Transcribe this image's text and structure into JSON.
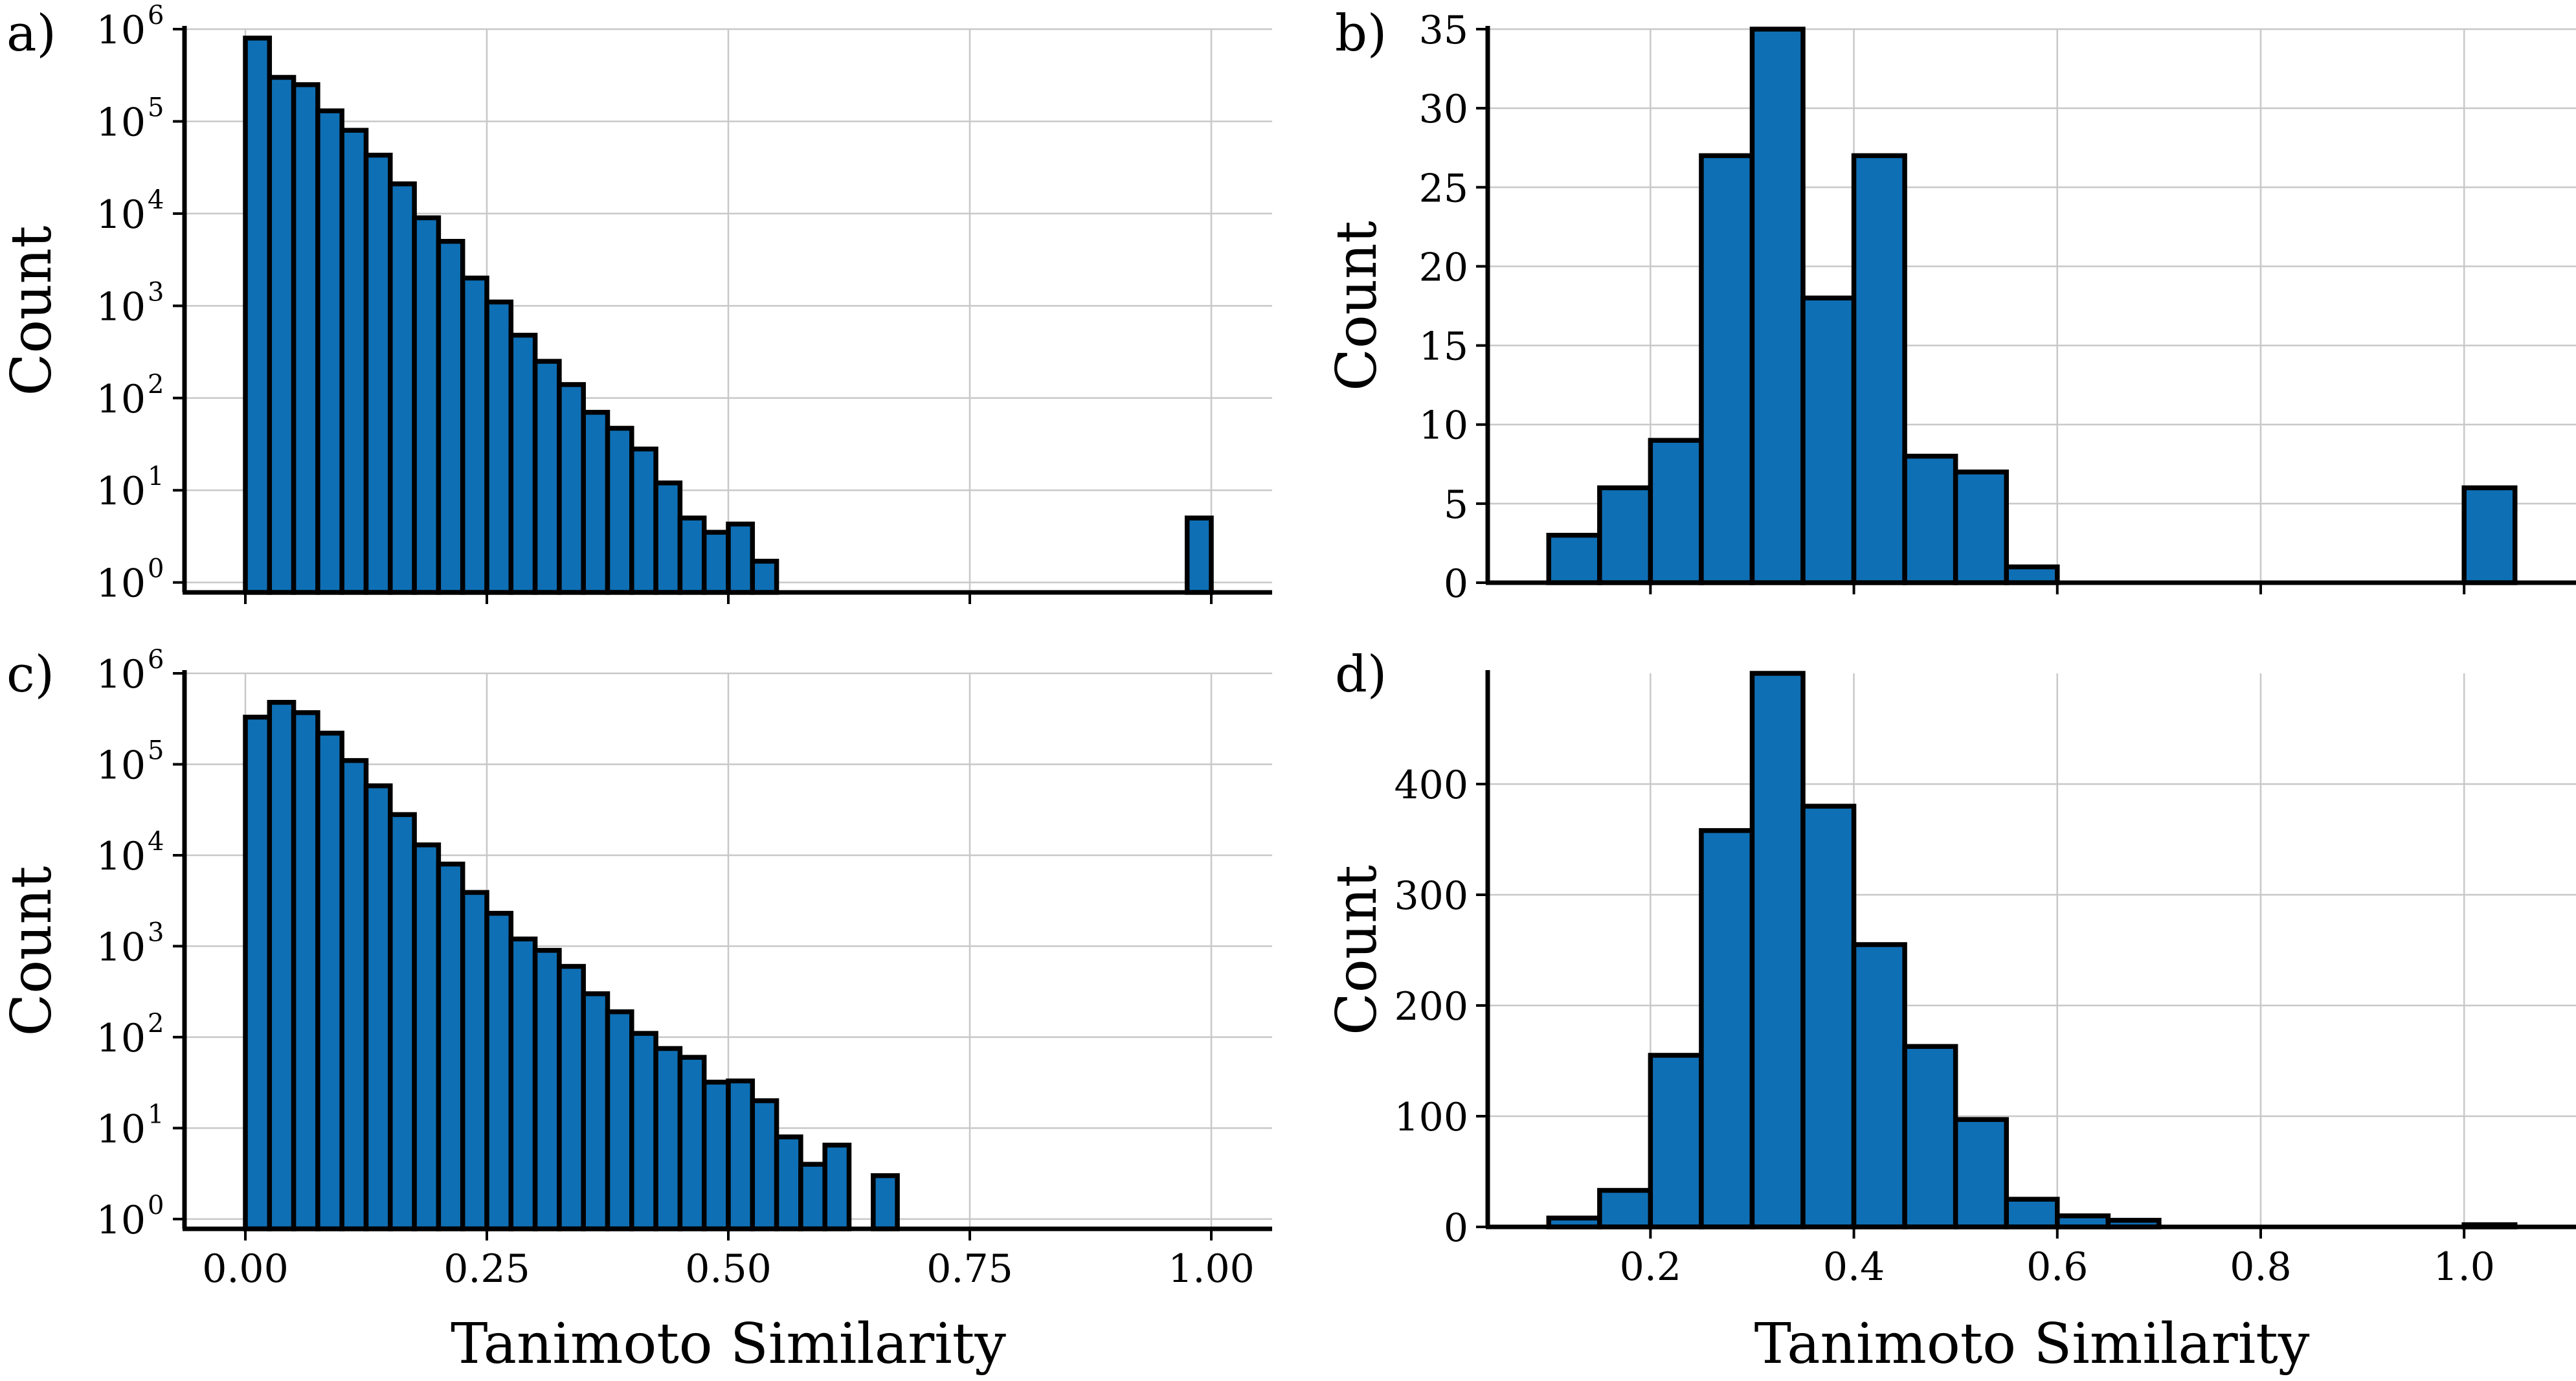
{
  "figure": {
    "x_axis_label": "Tanimoto Similarity",
    "y_axis_label": "Count"
  },
  "chart_data": [
    {
      "panel": "a)",
      "type": "bar",
      "yscale": "log",
      "xlabel": "",
      "ylabel": "Count",
      "xlim": [
        -0.063,
        1.063
      ],
      "ylim": [
        0.78,
        1000000
      ],
      "xticks": [
        0.0,
        0.25,
        0.5,
        0.75,
        1.0
      ],
      "xtick_labels_shown": false,
      "yticks": [
        1,
        10,
        100,
        1000,
        10000,
        100000,
        1000000
      ],
      "ytick_labels": [
        "10",
        "10",
        "10",
        "10",
        "10",
        "10",
        "10"
      ],
      "ytick_exponents": [
        "0",
        "1",
        "2",
        "3",
        "4",
        "5",
        "6"
      ],
      "bin_width": 0.025,
      "bin_starts": [
        0.0,
        0.025,
        0.05,
        0.075,
        0.1,
        0.125,
        0.15,
        0.175,
        0.2,
        0.225,
        0.25,
        0.275,
        0.3,
        0.325,
        0.35,
        0.375,
        0.4,
        0.425,
        0.45,
        0.475,
        0.5,
        0.525,
        0.975
      ],
      "values": [
        800000,
        300000,
        250000,
        130000,
        80000,
        43000,
        21000,
        9000,
        5000,
        2000,
        1100,
        480,
        250,
        140,
        70,
        47,
        28,
        12,
        5,
        3.5,
        4.3,
        1.7,
        5
      ]
    },
    {
      "panel": "b)",
      "type": "bar",
      "yscale": "linear",
      "xlabel": "",
      "ylabel": "Count",
      "xlim": [
        0.04,
        1.11
      ],
      "ylim": [
        0,
        35
      ],
      "xticks": [
        0.2,
        0.4,
        0.6,
        0.8,
        1.0
      ],
      "xtick_labels_shown": false,
      "yticks": [
        0,
        5,
        10,
        15,
        20,
        25,
        30,
        35
      ],
      "ytick_labels": [
        "0",
        "5",
        "10",
        "15",
        "20",
        "25",
        "30",
        "35"
      ],
      "bin_width": 0.05,
      "bin_starts": [
        0.1,
        0.15,
        0.2,
        0.25,
        0.3,
        0.35,
        0.4,
        0.45,
        0.5,
        0.55,
        1.0
      ],
      "values": [
        3,
        6,
        9,
        27,
        35,
        18,
        27,
        8,
        7,
        1,
        6
      ]
    },
    {
      "panel": "c)",
      "type": "bar",
      "yscale": "log",
      "xlabel": "Tanimoto Similarity",
      "ylabel": "Count",
      "xlim": [
        -0.063,
        1.063
      ],
      "ylim": [
        0.78,
        1000000
      ],
      "xticks": [
        0.0,
        0.25,
        0.5,
        0.75,
        1.0
      ],
      "xtick_labels": [
        "0.00",
        "0.25",
        "0.50",
        "0.75",
        "1.00"
      ],
      "yticks": [
        1,
        10,
        100,
        1000,
        10000,
        100000,
        1000000
      ],
      "ytick_labels": [
        "10",
        "10",
        "10",
        "10",
        "10",
        "10",
        "10"
      ],
      "ytick_exponents": [
        "0",
        "1",
        "2",
        "3",
        "4",
        "5",
        "6"
      ],
      "bin_width": 0.025,
      "bin_starts": [
        0.0,
        0.025,
        0.05,
        0.075,
        0.1,
        0.125,
        0.15,
        0.175,
        0.2,
        0.225,
        0.25,
        0.275,
        0.3,
        0.325,
        0.35,
        0.375,
        0.4,
        0.425,
        0.45,
        0.475,
        0.5,
        0.525,
        0.55,
        0.575,
        0.6,
        0.65
      ],
      "values": [
        330000,
        480000,
        370000,
        220000,
        110000,
        58000,
        28000,
        13000,
        8000,
        3900,
        2300,
        1200,
        900,
        600,
        300,
        190,
        110,
        75,
        60,
        32,
        33,
        20,
        8,
        4,
        6.5,
        3
      ]
    },
    {
      "panel": "d)",
      "type": "bar",
      "yscale": "linear",
      "xlabel": "Tanimoto Similarity",
      "ylabel": "Count",
      "xlim": [
        0.04,
        1.11
      ],
      "ylim": [
        0,
        500
      ],
      "xticks": [
        0.2,
        0.4,
        0.6,
        0.8,
        1.0
      ],
      "xtick_labels": [
        "0.2",
        "0.4",
        "0.6",
        "0.8",
        "1.0"
      ],
      "yticks": [
        0,
        100,
        200,
        300,
        400
      ],
      "ytick_labels": [
        "0",
        "100",
        "200",
        "300",
        "400"
      ],
      "bin_width": 0.05,
      "bin_starts": [
        0.1,
        0.15,
        0.2,
        0.25,
        0.3,
        0.35,
        0.4,
        0.45,
        0.5,
        0.55,
        0.6,
        0.65,
        1.0
      ],
      "values": [
        8,
        33,
        155,
        358,
        500,
        380,
        255,
        163,
        97,
        25,
        10,
        6,
        2
      ]
    }
  ]
}
